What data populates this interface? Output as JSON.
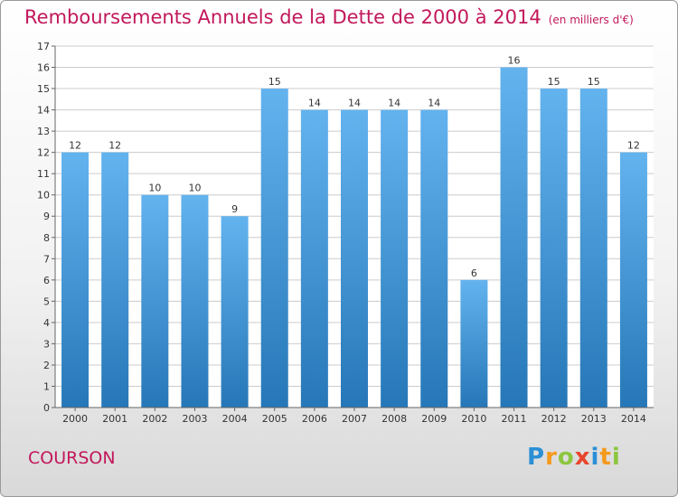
{
  "colors": {
    "title": "#c2185b",
    "bar_top": "#63b3ef",
    "bar_bottom": "#2677b7",
    "axis_text": "#333333",
    "grid": "#cccccc"
  },
  "footer": {
    "commune": "COURSON",
    "logo_letters": [
      {
        "ch": "P",
        "color": "#2b8fd6"
      },
      {
        "ch": "r",
        "color": "#f59a1c"
      },
      {
        "ch": "o",
        "color": "#8cc63f"
      },
      {
        "ch": "x",
        "color": "#e8452c"
      },
      {
        "ch": "i",
        "color": "#2b8fd6"
      },
      {
        "ch": "t",
        "color": "#f59a1c"
      },
      {
        "ch": "i",
        "color": "#8cc63f"
      }
    ]
  },
  "chart_data": {
    "type": "bar",
    "title": "Remboursements Annuels de la Dette de 2000 à 2014",
    "subtitle": "(en milliers d'€)",
    "xlabel": "",
    "ylabel": "",
    "categories": [
      "2000",
      "2001",
      "2002",
      "2003",
      "2004",
      "2005",
      "2006",
      "2007",
      "2008",
      "2009",
      "2010",
      "2011",
      "2012",
      "2013",
      "2014"
    ],
    "values": [
      12,
      12,
      10,
      10,
      9,
      15,
      14,
      14,
      14,
      14,
      6,
      16,
      15,
      15,
      12
    ],
    "ylim": [
      0,
      17
    ],
    "yticks": [
      0,
      1,
      2,
      3,
      4,
      5,
      6,
      7,
      8,
      9,
      10,
      11,
      12,
      13,
      14,
      15,
      16,
      17
    ],
    "grid": true,
    "legend": "none"
  }
}
